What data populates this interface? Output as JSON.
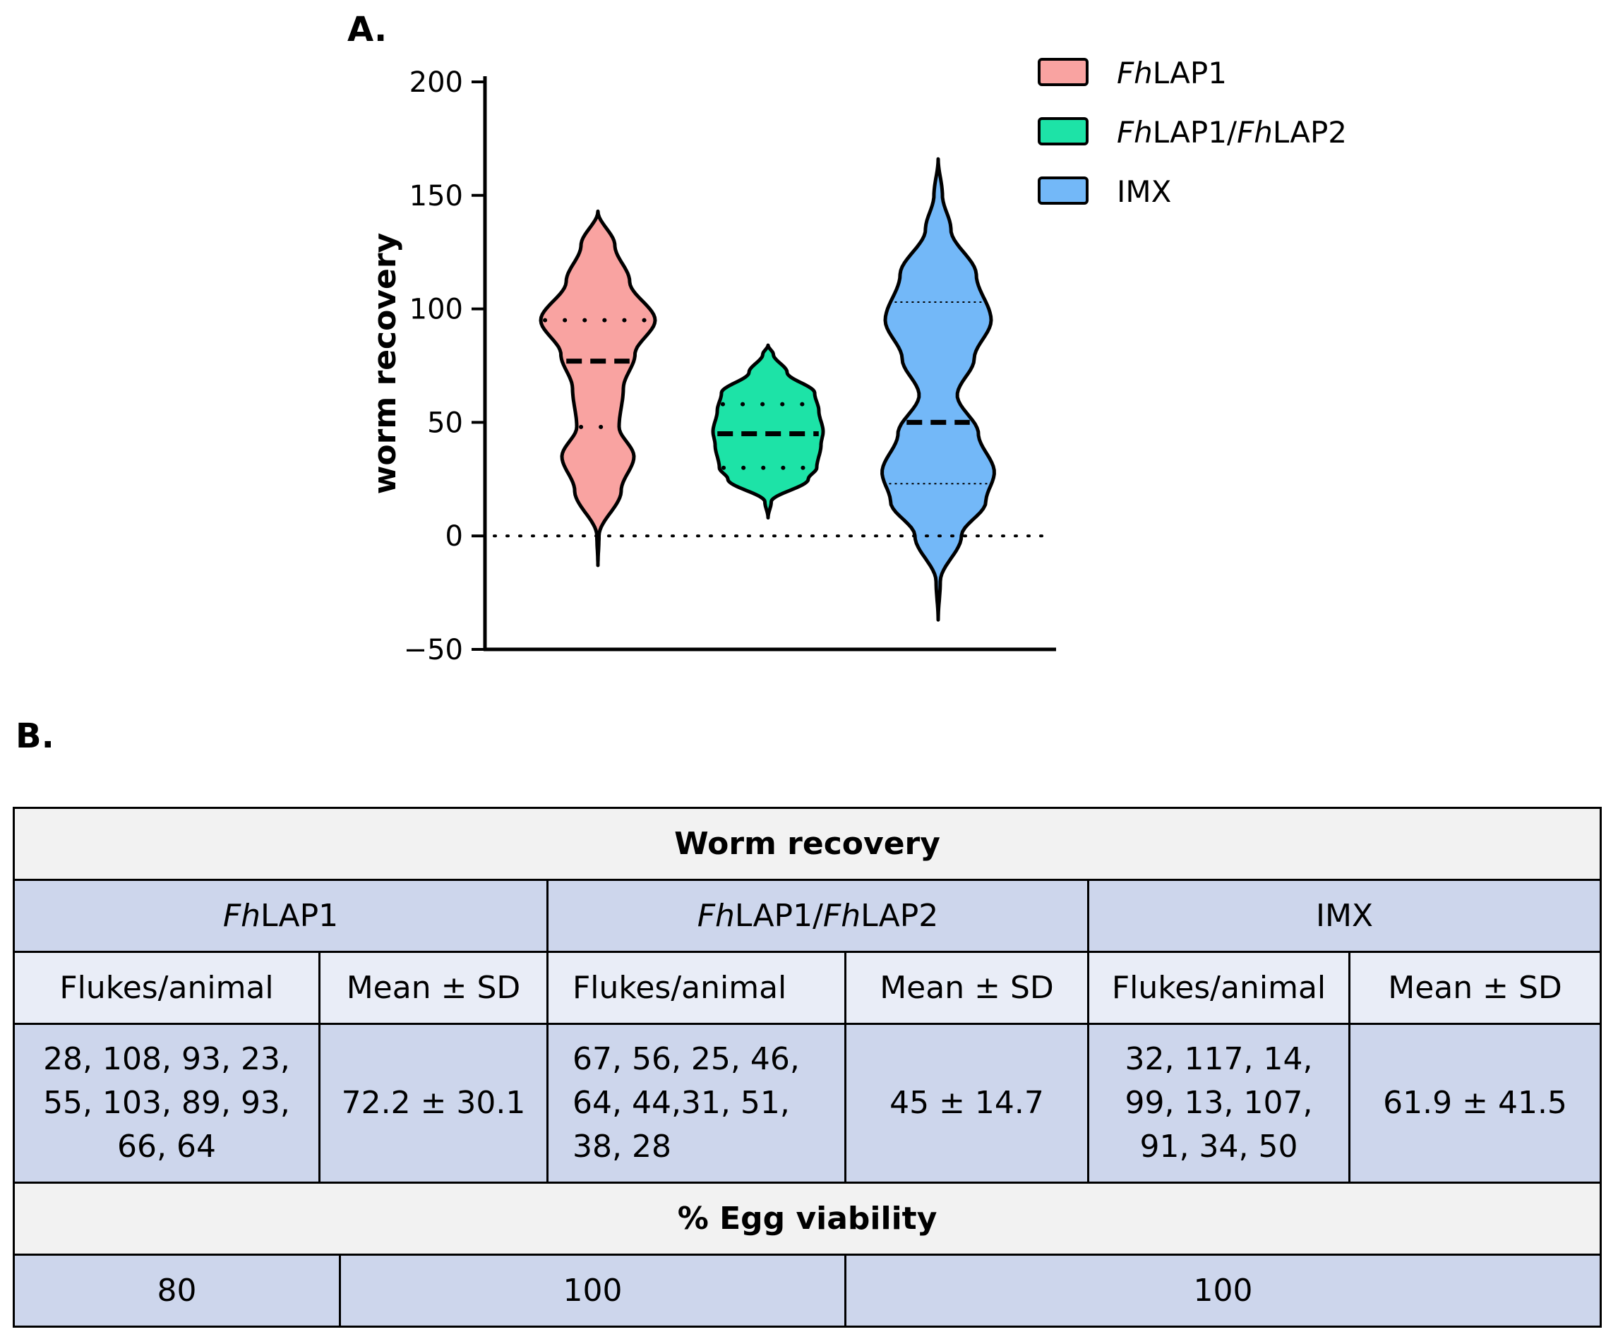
{
  "panel_a_label": "A.",
  "panel_b_label": "B.",
  "chart_data": {
    "type": "violin",
    "title": "",
    "xlabel": "",
    "ylabel": "worm recovery",
    "ylim": [
      -50,
      200
    ],
    "yticks": [
      200,
      150,
      100,
      50,
      0,
      -50
    ],
    "ytick_labels": [
      "200",
      "150",
      "100",
      "50",
      "0",
      "−50"
    ],
    "reference_line_y": 0,
    "legend": [
      {
        "prefix": "Fh",
        "rest": "LAP1",
        "prefix2": "",
        "rest2": "",
        "color": "#f9a3a1"
      },
      {
        "prefix": "Fh",
        "rest": "LAP1/",
        "prefix2": "Fh",
        "rest2": "LAP2",
        "color": "#1de3a7"
      },
      {
        "prefix": "",
        "rest": "IMX",
        "prefix2": "",
        "rest2": "",
        "color": "#73b8f8"
      }
    ],
    "series": [
      {
        "name": "FhLAP1",
        "color": "#f9a3a1",
        "values": [
          28,
          108,
          93,
          23,
          55,
          103,
          89,
          93,
          66,
          64
        ],
        "range": [
          -13,
          143
        ],
        "median": 77,
        "q1": 48,
        "q3": 95,
        "density": [
          [
            -13,
            0
          ],
          [
            0,
            1
          ],
          [
            20,
            22
          ],
          [
            35,
            34
          ],
          [
            48,
            20
          ],
          [
            65,
            24
          ],
          [
            80,
            35
          ],
          [
            95,
            54
          ],
          [
            112,
            30
          ],
          [
            128,
            16
          ],
          [
            143,
            0
          ]
        ]
      },
      {
        "name": "FhLAP1/FhLAP2",
        "color": "#1de3a7",
        "values": [
          67,
          56,
          25,
          46,
          64,
          44,
          31,
          51,
          38,
          28
        ],
        "range": [
          8,
          84
        ],
        "median": 45,
        "q1": 30,
        "q3": 58,
        "density": [
          [
            8,
            0
          ],
          [
            15,
            3
          ],
          [
            25,
            38
          ],
          [
            30,
            46
          ],
          [
            40,
            50
          ],
          [
            46,
            52
          ],
          [
            55,
            48
          ],
          [
            63,
            44
          ],
          [
            72,
            18
          ],
          [
            80,
            5
          ],
          [
            84,
            0
          ]
        ]
      },
      {
        "name": "IMX",
        "color": "#73b8f8",
        "values": [
          32,
          117,
          14,
          99,
          13,
          107,
          91,
          34,
          50
        ],
        "range": [
          -37,
          166
        ],
        "median": 50,
        "q1": 23,
        "q3": 103,
        "density": [
          [
            -37,
            0
          ],
          [
            -20,
            2
          ],
          [
            0,
            22
          ],
          [
            15,
            45
          ],
          [
            28,
            53
          ],
          [
            45,
            38
          ],
          [
            62,
            18
          ],
          [
            78,
            34
          ],
          [
            95,
            50
          ],
          [
            115,
            36
          ],
          [
            135,
            12
          ],
          [
            150,
            4
          ],
          [
            166,
            0
          ]
        ]
      }
    ]
  },
  "table": {
    "worm_title": "Worm recovery",
    "groups": [
      {
        "prefix": "Fh",
        "rest": "LAP1",
        "prefix2": "",
        "rest2": ""
      },
      {
        "prefix": "Fh",
        "rest": "LAP1/",
        "prefix2": "Fh",
        "rest2": "LAP2"
      },
      {
        "prefix": "",
        "rest": "IMX",
        "prefix2": "",
        "rest2": ""
      }
    ],
    "sub_headers": [
      "Flukes/animal",
      "Mean ± SD",
      "Flukes/animal",
      "Mean ± SD",
      "Flukes/animal",
      "Mean ± SD"
    ],
    "flukes": [
      {
        "l1": "28, 108, 93, 23,",
        "l2": "55, 103, 89, 93,",
        "l3": "66, 64"
      },
      {
        "l1": "67, 56, 25, 46,",
        "l2": "64, 44,31, 51,",
        "l3": "38, 28"
      },
      {
        "l1": "32, 117, 14,",
        "l2": "99, 13, 107,",
        "l3": "91, 34, 50"
      }
    ],
    "means": [
      "72.2 ± 30.1",
      "45 ± 14.7",
      "61.9 ± 41.5"
    ],
    "egg_title": "% Egg viability",
    "egg_values": [
      "80",
      "100",
      "100"
    ]
  }
}
